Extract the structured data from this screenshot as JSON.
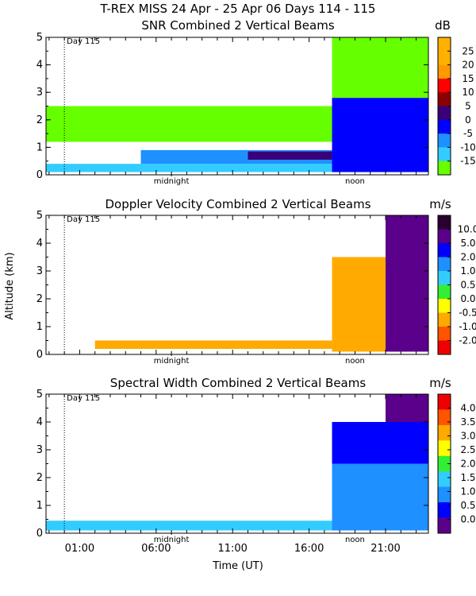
{
  "figure": {
    "title": "T-REX MISS   24 Apr - 25 Apr 06 Days 114 - 115",
    "xlabel": "Time (UT)",
    "ylabel": "Altitude (km)",
    "x_ticks": [
      "01:00",
      "06:00",
      "11:00",
      "16:00",
      "21:00"
    ],
    "midnight_label": "midnight",
    "noon_label": "noon",
    "day_label": "Day 115"
  },
  "chart_data": [
    {
      "type": "heatmap",
      "title": "SNR Combined 2 Vertical Beams",
      "unit": "dB",
      "ylim": [
        0,
        5
      ],
      "y_ticks": [
        "0",
        "1",
        "2",
        "3",
        "4",
        "5"
      ],
      "colorbar": {
        "ticks": [
          "25",
          "20",
          "15",
          "10",
          "5",
          "0",
          "-5",
          "-10",
          "-15"
        ],
        "colors": [
          "#ffb000",
          "#ffb000",
          "#ff9900",
          "#ff0000",
          "#8b0000",
          "#3a007a",
          "#0000ff",
          "#1e90ff",
          "#33ccff",
          "#66ff00"
        ]
      },
      "regions": [
        {
          "x": [
            -1.2,
            17.5
          ],
          "y": [
            0.1,
            0.4
          ],
          "color": "#33ccff"
        },
        {
          "x": [
            5,
            17.5
          ],
          "y": [
            0.4,
            0.9
          ],
          "color": "#1e90ff"
        },
        {
          "x": [
            12,
            17.5
          ],
          "y": [
            0.55,
            0.85
          ],
          "color": "#3a007a"
        },
        {
          "x": [
            -1.2,
            17.5
          ],
          "y": [
            1.2,
            2.5
          ],
          "color": "#66ff00"
        },
        {
          "x": [
            17.5,
            23.8
          ],
          "y": [
            0.1,
            2.8
          ],
          "color": "#0000ff"
        },
        {
          "x": [
            17.5,
            23.8
          ],
          "y": [
            2.8,
            5.0
          ],
          "color": "#66ff00"
        }
      ]
    },
    {
      "type": "heatmap",
      "title": "Doppler Velocity Combined 2 Vertical Beams",
      "unit": "m/s",
      "ylim": [
        0,
        5
      ],
      "y_ticks": [
        "0",
        "1",
        "2",
        "3",
        "4",
        "5"
      ],
      "colorbar": {
        "ticks": [
          "10.0",
          "5.0",
          "2.0",
          "1.0",
          "0.5",
          "0.0",
          "-0.5",
          "-1.0",
          "-2.0"
        ],
        "colors": [
          "#2a0030",
          "#5a008a",
          "#0000ff",
          "#1e90ff",
          "#33ccff",
          "#33ee33",
          "#ffff00",
          "#ffaa00",
          "#ff5500",
          "#ee0000"
        ]
      },
      "regions": [
        {
          "x": [
            2,
            17.5
          ],
          "y": [
            0.2,
            0.5
          ],
          "color": "#ffaa00"
        },
        {
          "x": [
            17.5,
            23.8
          ],
          "y": [
            0.1,
            3.5
          ],
          "color": "#ffaa00"
        },
        {
          "x": [
            21,
            23.8
          ],
          "y": [
            0.1,
            5.0
          ],
          "color": "#5a008a"
        }
      ]
    },
    {
      "type": "heatmap",
      "title": "Spectral Width Combined 2 Vertical Beams",
      "unit": "m/s",
      "ylim": [
        0,
        5
      ],
      "y_ticks": [
        "0",
        "1",
        "2",
        "3",
        "4",
        "5"
      ],
      "colorbar": {
        "ticks": [
          "4.0",
          "3.5",
          "3.0",
          "2.5",
          "2.0",
          "1.5",
          "1.0",
          "0.5",
          "0.0"
        ],
        "colors": [
          "#ee0000",
          "#ff5500",
          "#ffaa00",
          "#ffff00",
          "#33ee33",
          "#33ccff",
          "#1e90ff",
          "#0000ff",
          "#5a008a"
        ]
      },
      "regions": [
        {
          "x": [
            -1.2,
            17.5
          ],
          "y": [
            0.1,
            0.45
          ],
          "color": "#33ccff"
        },
        {
          "x": [
            17.5,
            23.8
          ],
          "y": [
            0.1,
            2.5
          ],
          "color": "#1e90ff"
        },
        {
          "x": [
            17.5,
            23.8
          ],
          "y": [
            2.5,
            4.0
          ],
          "color": "#0000ff"
        },
        {
          "x": [
            21,
            23.8
          ],
          "y": [
            4.0,
            5.0
          ],
          "color": "#5a008a"
        }
      ]
    }
  ]
}
